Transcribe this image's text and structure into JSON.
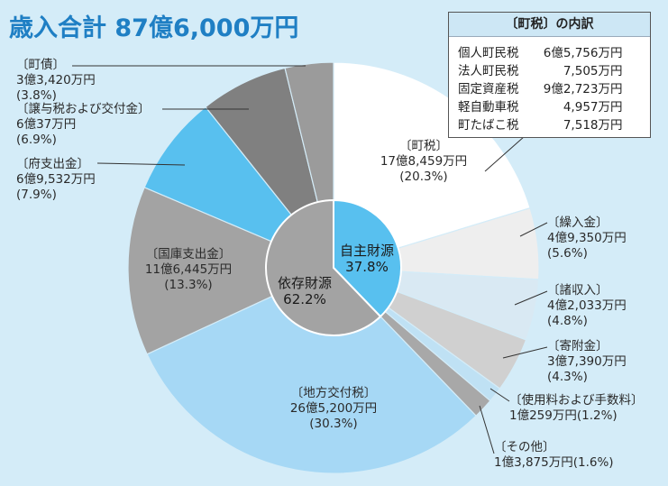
{
  "title": "歳入合計 87億6,000万円",
  "chart_data": {
    "type": "pie",
    "total_label": "歳入合計 87億6,000万円",
    "slices": [
      {
        "name": "町税",
        "label": "〔町税〕",
        "amount": "17億8,459万円",
        "pct_label": "(20.3%)",
        "percent": 20.3,
        "color": "#ffffff",
        "group": "自主財源"
      },
      {
        "name": "繰入金",
        "label": "〔繰入金〕",
        "amount": "4億9,350万円",
        "pct_label": "(5.6%)",
        "percent": 5.6,
        "color": "#eeeeee",
        "group": "自主財源"
      },
      {
        "name": "諸収入",
        "label": "〔諸収入〕",
        "amount": "4億2,033万円",
        "pct_label": "(4.8%)",
        "percent": 4.8,
        "color": "#d9e9f3",
        "group": "自主財源"
      },
      {
        "name": "寄附金",
        "label": "〔寄附金〕",
        "amount": "3億7,390万円",
        "pct_label": "(4.3%)",
        "percent": 4.3,
        "color": "#d0d0d0",
        "group": "自主財源"
      },
      {
        "name": "使用料および手数料",
        "label": "〔使用料および手数料〕",
        "amount": "1億259万円",
        "pct_label": "(1.2%)",
        "percent": 1.2,
        "color": "#bfe1f4",
        "group": "自主財源"
      },
      {
        "name": "その他",
        "label": "〔その他〕",
        "amount": "1億3,875万円",
        "pct_label": "(1.6%)",
        "percent": 1.6,
        "color": "#a8a8a8",
        "group": "自主財源"
      },
      {
        "name": "地方交付税",
        "label": "〔地方交付税〕",
        "amount": "26億5,200万円",
        "pct_label": "(30.3%)",
        "percent": 30.3,
        "color": "#a6d8f5",
        "group": "依存財源"
      },
      {
        "name": "国庫支出金",
        "label": "〔国庫支出金〕",
        "amount": "11億6,445万円",
        "pct_label": "(13.3%)",
        "percent": 13.3,
        "color": "#a3a3a3",
        "group": "依存財源"
      },
      {
        "name": "府支出金",
        "label": "〔府支出金〕",
        "amount": "6億9,532万円",
        "pct_label": "(7.9%)",
        "percent": 7.9,
        "color": "#58c0ef",
        "group": "依存財源"
      },
      {
        "name": "譲与税および交付金",
        "label": "〔譲与税および交付金〕",
        "amount": "6億37万円",
        "pct_label": "(6.9%)",
        "percent": 6.9,
        "color": "#808080",
        "group": "依存財源"
      },
      {
        "name": "町債",
        "label": "〔町債〕",
        "amount": "3億3,420万円",
        "pct_label": "(3.8%)",
        "percent": 3.8,
        "color": "#9b9b9b",
        "group": "依存財源"
      }
    ],
    "inner": [
      {
        "name": "自主財源",
        "pct_label": "37.8%",
        "percent": 37.8,
        "color": "#58c0ef"
      },
      {
        "name": "依存財源",
        "pct_label": "62.2%",
        "percent": 62.2,
        "color": "#a3a3a3"
      }
    ]
  },
  "tax_breakdown": {
    "title": "〔町税〕の内訳",
    "rows": [
      {
        "name": "個人町民税",
        "amount": "6億5,756万円"
      },
      {
        "name": "法人町民税",
        "amount": "7,505万円"
      },
      {
        "name": "固定資産税",
        "amount": "9億2,723万円"
      },
      {
        "name": "軽自動車税",
        "amount": "4,957万円"
      },
      {
        "name": "町たばこ税",
        "amount": "7,518万円"
      }
    ]
  }
}
